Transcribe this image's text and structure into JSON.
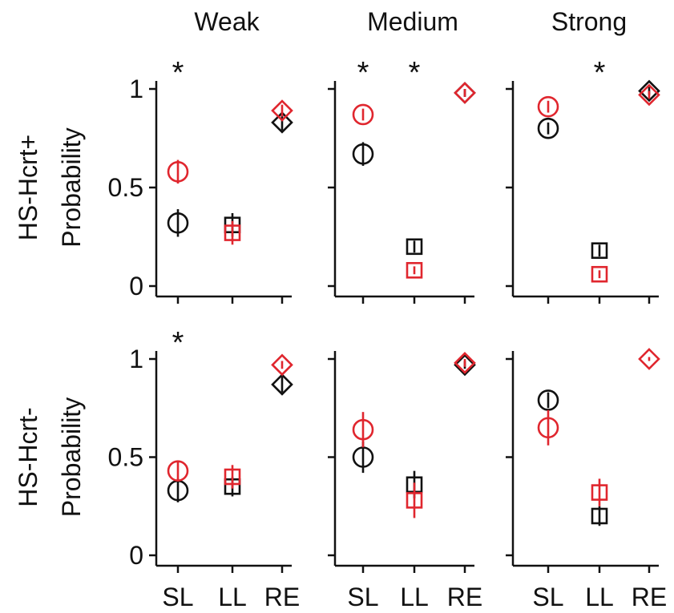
{
  "colors": {
    "black": "#111111",
    "red": "#e0262e"
  },
  "column_titles": [
    "Weak",
    "Medium",
    "Strong"
  ],
  "row_labels": [
    "HS-Hcrt+",
    "HS-Hcrt-"
  ],
  "ylabel": "Probability",
  "y_ticks": [
    "0",
    "0.5",
    "1"
  ],
  "y_tick_values": [
    0,
    0.5,
    1
  ],
  "x_categories": [
    "SL",
    "LL",
    "RE"
  ],
  "significance_mark": "*",
  "chart_data": [
    {
      "type": "scatter",
      "row": "HS-Hcrt+",
      "column": "Weak",
      "categories": [
        "SL",
        "LL",
        "RE"
      ],
      "ylim": [
        0,
        1
      ],
      "markers": [
        "circle",
        "square",
        "diamond"
      ],
      "series": [
        {
          "color": "black",
          "values": [
            0.32,
            0.31,
            0.83
          ],
          "errors": [
            0.07,
            0.06,
            0.04
          ]
        },
        {
          "color": "red",
          "values": [
            0.58,
            0.27,
            0.89
          ],
          "errors": [
            0.06,
            0.06,
            0.03
          ]
        }
      ],
      "significant": [
        "SL"
      ]
    },
    {
      "type": "scatter",
      "row": "HS-Hcrt+",
      "column": "Medium",
      "categories": [
        "SL",
        "LL",
        "RE"
      ],
      "ylim": [
        0,
        1
      ],
      "markers": [
        "circle",
        "square",
        "diamond"
      ],
      "series": [
        {
          "color": "black",
          "values": [
            0.67,
            0.2,
            0.98
          ],
          "errors": [
            0.06,
            0.03,
            0.02
          ]
        },
        {
          "color": "red",
          "values": [
            0.87,
            0.08,
            0.98
          ],
          "errors": [
            0.03,
            0.02,
            0.02
          ]
        }
      ],
      "significant": [
        "SL",
        "LL"
      ]
    },
    {
      "type": "scatter",
      "row": "HS-Hcrt+",
      "column": "Strong",
      "categories": [
        "SL",
        "LL",
        "RE"
      ],
      "ylim": [
        0,
        1
      ],
      "markers": [
        "circle",
        "square",
        "diamond"
      ],
      "series": [
        {
          "color": "black",
          "values": [
            0.8,
            0.18,
            0.99
          ],
          "errors": [
            0.03,
            0.03,
            0.02
          ]
        },
        {
          "color": "red",
          "values": [
            0.91,
            0.06,
            0.97
          ],
          "errors": [
            0.03,
            0.02,
            0.02
          ]
        }
      ],
      "significant": [
        "LL"
      ]
    },
    {
      "type": "scatter",
      "row": "HS-Hcrt-",
      "column": "Weak",
      "categories": [
        "SL",
        "LL",
        "RE"
      ],
      "ylim": [
        0,
        1
      ],
      "markers": [
        "circle",
        "square",
        "diamond"
      ],
      "series": [
        {
          "color": "black",
          "values": [
            0.33,
            0.35,
            0.87
          ],
          "errors": [
            0.06,
            0.05,
            0.04
          ]
        },
        {
          "color": "red",
          "values": [
            0.43,
            0.4,
            0.97
          ],
          "errors": [
            0.05,
            0.06,
            0.02
          ]
        }
      ],
      "significant": [
        "SL"
      ]
    },
    {
      "type": "scatter",
      "row": "HS-Hcrt-",
      "column": "Medium",
      "categories": [
        "SL",
        "LL",
        "RE"
      ],
      "ylim": [
        0,
        1
      ],
      "markers": [
        "circle",
        "square",
        "diamond"
      ],
      "series": [
        {
          "color": "black",
          "values": [
            0.5,
            0.36,
            0.97
          ],
          "errors": [
            0.08,
            0.07,
            0.02
          ]
        },
        {
          "color": "red",
          "values": [
            0.64,
            0.28,
            0.98
          ],
          "errors": [
            0.09,
            0.09,
            0.02
          ]
        }
      ],
      "significant": []
    },
    {
      "type": "scatter",
      "row": "HS-Hcrt-",
      "column": "Strong",
      "categories": [
        "SL",
        "LL",
        "RE"
      ],
      "ylim": [
        0,
        1
      ],
      "markers": [
        "circle",
        "square",
        "diamond"
      ],
      "series": [
        {
          "color": "black",
          "values": [
            0.79,
            0.2,
            null
          ],
          "errors": [
            0.04,
            0.05,
            null
          ]
        },
        {
          "color": "red",
          "values": [
            0.65,
            0.32,
            1.0
          ],
          "errors": [
            0.09,
            0.07,
            0.01
          ]
        }
      ],
      "significant": []
    }
  ]
}
